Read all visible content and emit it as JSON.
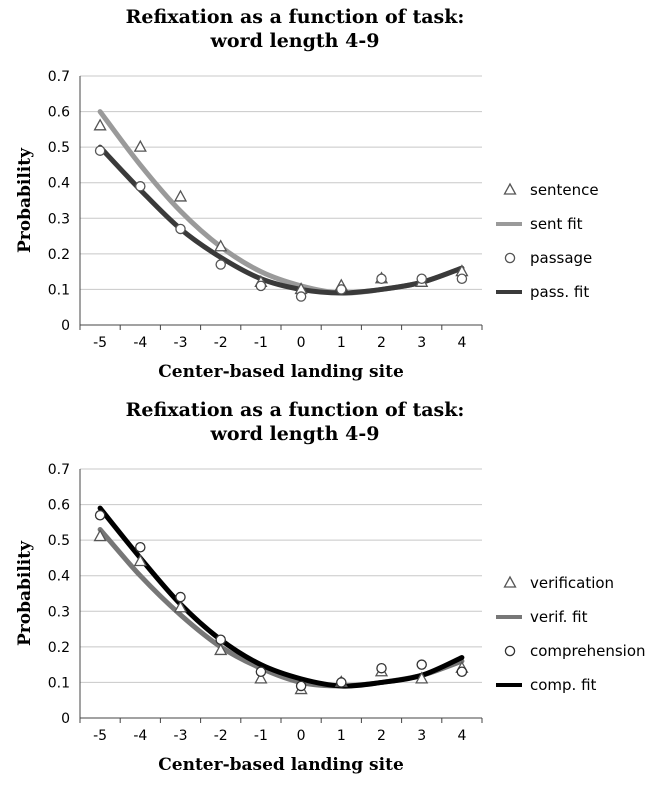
{
  "chart_data": [
    {
      "type": "scatter",
      "title_lines": [
        "Refixation as a function of task:",
        "word length 4-9"
      ],
      "xlabel": "Center-based landing site",
      "ylabel": "Probability",
      "xlim": [
        -5,
        4
      ],
      "ylim": [
        0,
        0.7
      ],
      "x_ticks": [
        "-5",
        "-4",
        "-3",
        "-2",
        "-1",
        "0",
        "1",
        "2",
        "3",
        "4"
      ],
      "y_ticks": [
        "0",
        "0.1",
        "0.2",
        "0.3",
        "0.4",
        "0.5",
        "0.6",
        "0.7"
      ],
      "grid": true,
      "legend_position": "right",
      "series": [
        {
          "name": "sentence",
          "kind": "points",
          "marker": "triangle",
          "color": "#555555",
          "x": [
            -5,
            -4,
            -3,
            -2,
            -1,
            0,
            1,
            2,
            3,
            4
          ],
          "y": [
            0.56,
            0.5,
            0.36,
            0.22,
            0.12,
            0.1,
            0.11,
            0.13,
            0.12,
            0.15
          ]
        },
        {
          "name": "sent fit",
          "kind": "line",
          "color": "#9a9a9a",
          "x": [
            -5,
            -4,
            -3,
            -2,
            -1,
            0,
            1,
            2,
            3,
            4
          ],
          "y": [
            0.6,
            0.45,
            0.32,
            0.22,
            0.15,
            0.11,
            0.09,
            0.1,
            0.12,
            0.16
          ]
        },
        {
          "name": "passage",
          "kind": "points",
          "marker": "circle",
          "color": "#555555",
          "x": [
            -5,
            -4,
            -3,
            -2,
            -1,
            0,
            1,
            2,
            3,
            4
          ],
          "y": [
            0.49,
            0.39,
            0.27,
            0.17,
            0.11,
            0.08,
            0.1,
            0.13,
            0.13,
            0.13
          ]
        },
        {
          "name": "pass. fit",
          "kind": "line",
          "color": "#3a3a3a",
          "x": [
            -5,
            -4,
            -3,
            -2,
            -1,
            0,
            1,
            2,
            3,
            4
          ],
          "y": [
            0.5,
            0.38,
            0.27,
            0.19,
            0.13,
            0.1,
            0.09,
            0.1,
            0.12,
            0.16
          ]
        }
      ]
    },
    {
      "type": "scatter",
      "title_lines": [
        "Refixation as a function of task:",
        "word length 4-9"
      ],
      "xlabel": "Center-based landing site",
      "ylabel": "Probability",
      "xlim": [
        -5,
        4
      ],
      "ylim": [
        0,
        0.7
      ],
      "x_ticks": [
        "-5",
        "-4",
        "-3",
        "-2",
        "-1",
        "0",
        "1",
        "2",
        "3",
        "4"
      ],
      "y_ticks": [
        "0",
        "0.1",
        "0.2",
        "0.3",
        "0.4",
        "0.5",
        "0.6",
        "0.7"
      ],
      "grid": true,
      "legend_position": "right",
      "series": [
        {
          "name": "verification",
          "kind": "points",
          "marker": "triangle",
          "color": "#555555",
          "x": [
            -5,
            -4,
            -3,
            -2,
            -1,
            0,
            1,
            2,
            3,
            4
          ],
          "y": [
            0.51,
            0.44,
            0.31,
            0.19,
            0.11,
            0.08,
            0.1,
            0.13,
            0.11,
            0.14
          ]
        },
        {
          "name": "verif. fit",
          "kind": "line",
          "color": "#777777",
          "x": [
            -5,
            -4,
            -3,
            -2,
            -1,
            0,
            1,
            2,
            3,
            4
          ],
          "y": [
            0.53,
            0.4,
            0.29,
            0.2,
            0.14,
            0.1,
            0.09,
            0.1,
            0.12,
            0.16
          ]
        },
        {
          "name": "comprehension",
          "kind": "points",
          "marker": "circle",
          "color": "#333333",
          "x": [
            -5,
            -4,
            -3,
            -2,
            -1,
            0,
            1,
            2,
            3,
            4
          ],
          "y": [
            0.57,
            0.48,
            0.34,
            0.22,
            0.13,
            0.09,
            0.1,
            0.14,
            0.15,
            0.13
          ]
        },
        {
          "name": "comp. fit",
          "kind": "line",
          "color": "#000000",
          "x": [
            -5,
            -4,
            -3,
            -2,
            -1,
            0,
            1,
            2,
            3,
            4
          ],
          "y": [
            0.59,
            0.45,
            0.32,
            0.22,
            0.15,
            0.11,
            0.09,
            0.1,
            0.12,
            0.17
          ]
        }
      ]
    }
  ]
}
